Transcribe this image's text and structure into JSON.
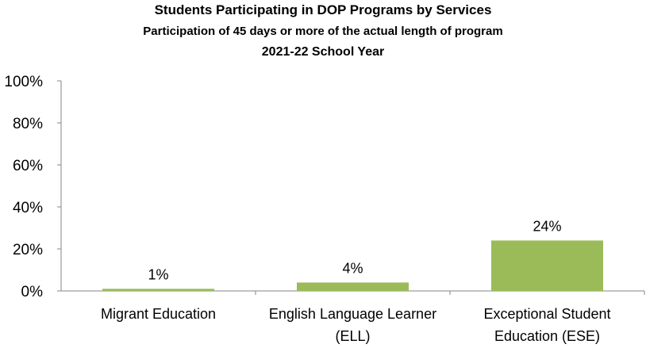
{
  "chart_data": {
    "type": "bar",
    "title": "Students Participating in DOP Programs by Services",
    "subtitle": "Participation of 45 days or more of the actual length of program",
    "subtitle2": "2021-22 School Year",
    "categories": [
      [
        "Migrant Education"
      ],
      [
        "English Language Learner",
        "(ELL)"
      ],
      [
        "Exceptional Student",
        "Education (ESE)"
      ]
    ],
    "values": [
      1,
      4,
      24
    ],
    "data_labels": [
      "1%",
      "4%",
      "24%"
    ],
    "ylim": [
      0,
      100
    ],
    "yticks": [
      0,
      20,
      40,
      60,
      80,
      100
    ],
    "ytick_labels": [
      "0%",
      "20%",
      "40%",
      "60%",
      "80%",
      "100%"
    ],
    "xlabel": "",
    "ylabel": "",
    "grid": false,
    "bar_color": "#9BBB59",
    "axis_color": "#868686"
  }
}
